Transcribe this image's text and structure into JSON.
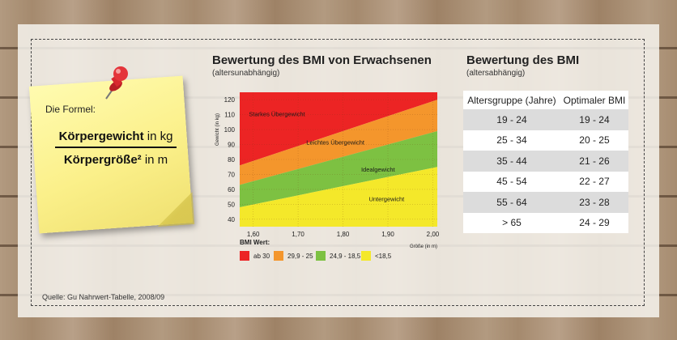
{
  "formula": {
    "intro": "Die Formel:",
    "numerator_main": "Körpergewicht",
    "numerator_unit": "in kg",
    "denominator_main": "Körpergröße²",
    "denominator_unit": "in m"
  },
  "chart_data": {
    "type": "area",
    "title": "Bewertung des BMI von Erwachsenen",
    "subtitle": "(altersunabhängig)",
    "ylabel": "Gewicht (in kg)",
    "xlabel": "Größe (in m)",
    "xlim": [
      1.57,
      2.01
    ],
    "ylim": [
      35,
      125
    ],
    "x_ticks": [
      "1,60",
      "1,70",
      "1,80",
      "1,90",
      "2,00"
    ],
    "y_ticks": [
      "40",
      "50",
      "60",
      "70",
      "80",
      "90",
      "100",
      "110",
      "120"
    ],
    "legend_title": "BMI Wert:",
    "zones": [
      {
        "name": "ab 30",
        "color": "#ec2424",
        "label": "Starkes Übergewicht"
      },
      {
        "name": "29,9 - 25",
        "color": "#f4962c",
        "label": "Leichtes Übergewicht"
      },
      {
        "name": "24,9 - 18,5",
        "color": "#7dc142",
        "label": "Idealgewicht"
      },
      {
        "name": "<18,5",
        "color": "#f4e82a",
        "label": "Untergewicht"
      }
    ],
    "boundaries": [
      {
        "bmi": 30,
        "x": [
          1.57,
          2.01
        ],
        "y": [
          76,
          120
        ]
      },
      {
        "bmi": 25,
        "x": [
          1.57,
          2.01
        ],
        "y": [
          63,
          99
        ]
      },
      {
        "bmi": 18.5,
        "x": [
          1.57,
          2.01
        ],
        "y": [
          48,
          75
        ]
      }
    ],
    "zone_labels": [
      {
        "text": "Starkes Übergewicht",
        "x": 1.653,
        "y": 109
      },
      {
        "text": "Leichtes Übergewicht",
        "x": 1.783,
        "y": 90
      },
      {
        "text": "Idealgewicht",
        "x": 1.878,
        "y": 72
      },
      {
        "text": "Untergewicht",
        "x": 1.897,
        "y": 52
      }
    ],
    "grid": true
  },
  "table": {
    "title": "Bewertung des BMI",
    "subtitle": "(altersabhängig)",
    "headers": [
      "Altersgruppe (Jahre)",
      "Optimaler BMI"
    ],
    "rows": [
      [
        "19 - 24",
        "19 - 24"
      ],
      [
        "25 - 34",
        "20 - 25"
      ],
      [
        "35 - 44",
        "21 - 26"
      ],
      [
        "45 - 54",
        "22 - 27"
      ],
      [
        "55 - 64",
        "23 - 28"
      ],
      [
        "> 65",
        "24 - 29"
      ]
    ]
  },
  "source": "Quelle: Gu Nahrwert-Tabelle, 2008/09",
  "colors": {
    "panel": "#f6f3ee",
    "note": "#fbf08a",
    "pin": "#d8282e"
  }
}
